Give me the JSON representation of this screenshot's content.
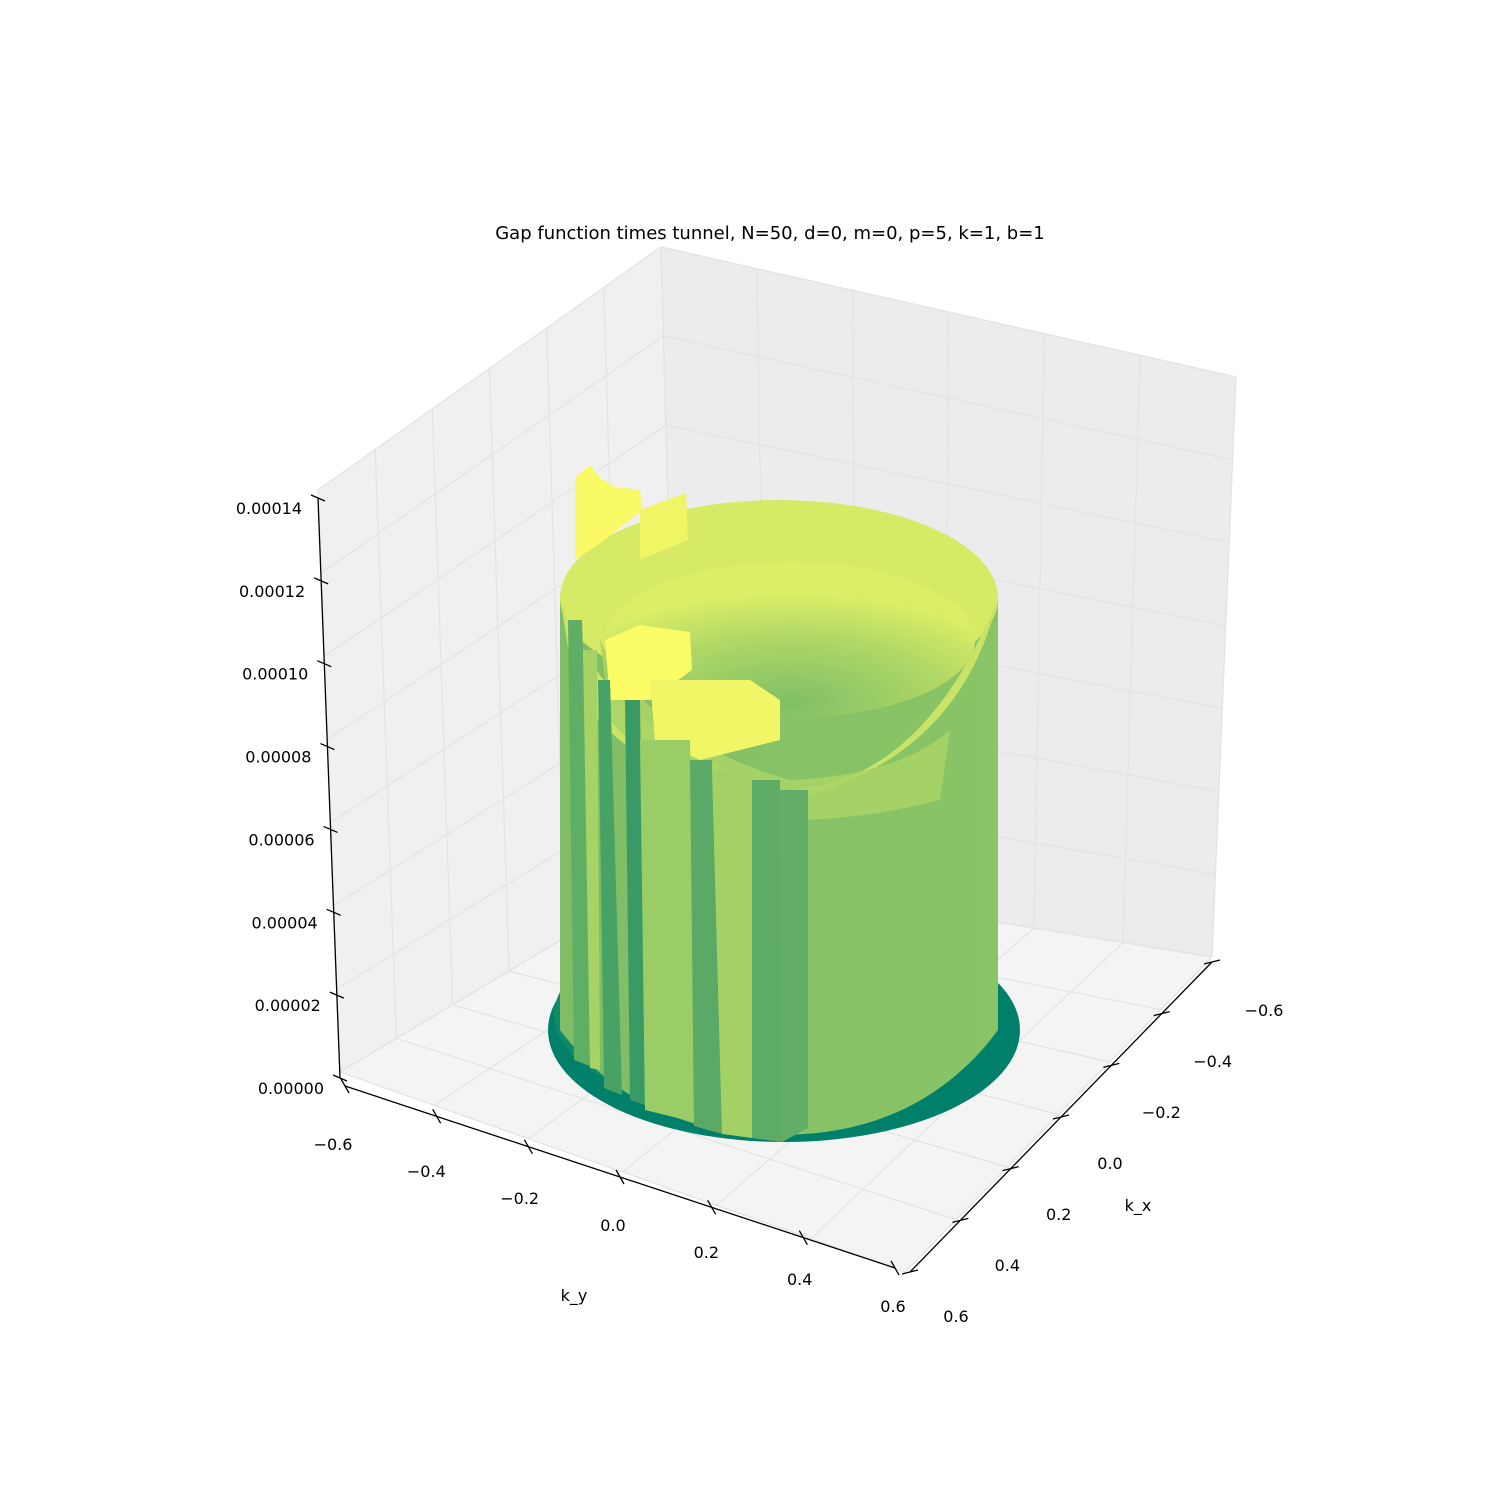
{
  "chart_data": {
    "type": "surface3d",
    "title": "Gap function times tunnel, N=50, d=0, m=0, p=5, k=1, b=1",
    "xlabel": "k_x",
    "ylabel": "k_y",
    "zlabel": "",
    "xlim": [
      -0.6,
      0.6
    ],
    "ylim": [
      -0.6,
      0.6
    ],
    "zlim": [
      0,
      0.00014
    ],
    "x_ticks": [
      "−0.6",
      "−0.4",
      "−0.2",
      "0.0",
      "0.2",
      "0.4",
      "0.6"
    ],
    "y_ticks": [
      "−0.6",
      "−0.4",
      "−0.2",
      "0.0",
      "0.2",
      "0.4",
      "0.6"
    ],
    "z_ticks": [
      "0.00000",
      "0.00002",
      "0.00004",
      "0.00006",
      "0.00008",
      "0.00010",
      "0.00012",
      "0.00014"
    ],
    "grid": true,
    "colormap": "summer",
    "colors": {
      "low": "#008066",
      "mid": "#86c266",
      "high": "#ffff66",
      "pane": "#f2f2f2"
    },
    "surface": {
      "shape": "ring",
      "radius": 0.3,
      "base_height": 0,
      "wall_height": 0.0001,
      "peak_height": 0.000145
    }
  }
}
